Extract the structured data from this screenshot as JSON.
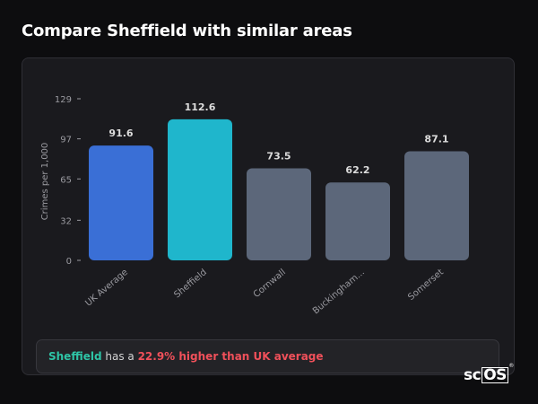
{
  "header": {
    "title": "Compare Sheffield with similar areas"
  },
  "colors": {
    "uk_average": "#3a6fd6",
    "selected_area": "#1fb6cc",
    "other_area": "#5c677a",
    "highlight_area_text": "#2ec4a6",
    "highlight_diff_text": "#f0505a",
    "axis_text": "#9a9aa0",
    "value_text": "#dcdcdc"
  },
  "chart_data": {
    "type": "bar",
    "categories": [
      "UK Average",
      "Sheffield",
      "Cornwall",
      "Buckingham...",
      "Somerset"
    ],
    "values": [
      91.6,
      112.6,
      73.5,
      62.2,
      87.1
    ],
    "value_labels": [
      "91.6",
      "112.6",
      "73.5",
      "62.2",
      "87.1"
    ],
    "bar_roles": [
      "uk_average",
      "selected_area",
      "other_area",
      "other_area",
      "other_area"
    ],
    "ylabel": "Crimes per 1,000",
    "yticks": [
      0,
      32,
      65,
      97,
      129
    ],
    "ylim": [
      0,
      129
    ],
    "grid": false,
    "legend": "none"
  },
  "summary": {
    "area": "Sheffield",
    "connector": " has a ",
    "difference": "22.9% higher than UK average"
  },
  "brand": {
    "prefix": "sc",
    "boxed": "OS",
    "mark": "®"
  }
}
